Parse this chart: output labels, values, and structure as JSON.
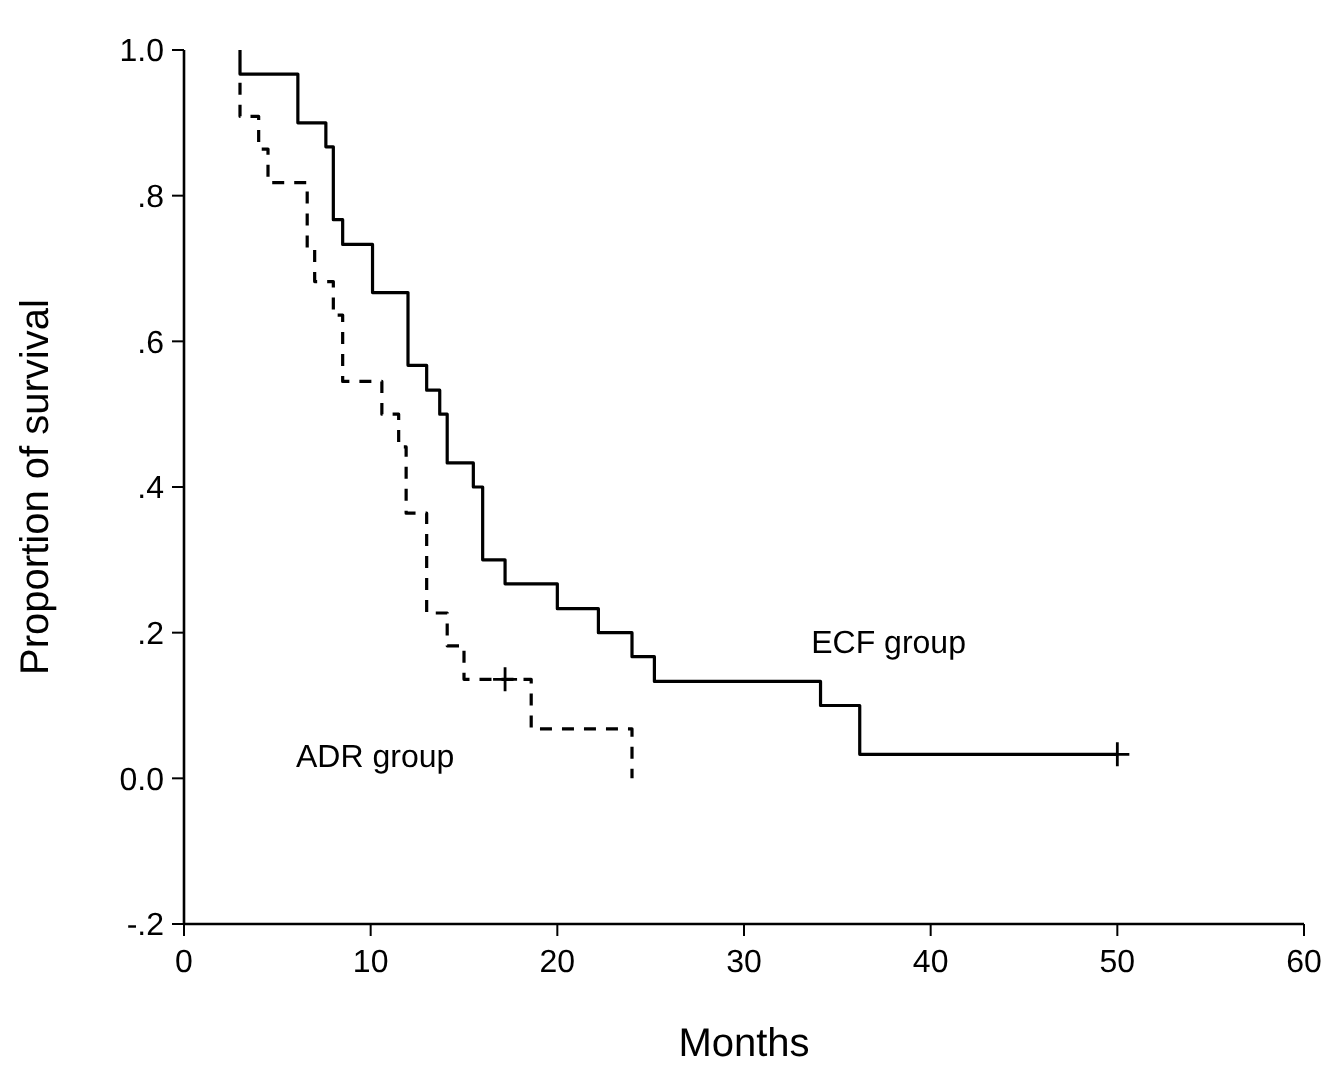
{
  "chart_data": {
    "type": "step",
    "xlabel": "Months",
    "ylabel": "Proportion of survival",
    "xlim": [
      0,
      60
    ],
    "xticks": [
      0,
      10,
      20,
      30,
      40,
      50,
      60
    ],
    "ylim": [
      -0.2,
      1.0
    ],
    "yticks": [
      {
        "value": -0.2,
        "label": "-.2"
      },
      {
        "value": 0,
        "label": "0.0"
      },
      {
        "value": 0.2,
        "label": ".2"
      },
      {
        "value": 0.4,
        "label": ".4"
      },
      {
        "value": 0.6,
        "label": ".6"
      },
      {
        "value": 0.8,
        "label": ".8"
      },
      {
        "value": 1.0,
        "label": "1.0"
      }
    ],
    "grid": false,
    "marker": "none",
    "series": [
      {
        "name": "ECF group",
        "color": "#000000",
        "line_style": "solid",
        "x": [
          3,
          3,
          6.1,
          7.6,
          8.0,
          8.5,
          10.1,
          12.0,
          13.0,
          13.7,
          14.1,
          15.5,
          16.0,
          17.2,
          20.0,
          22.2,
          24.0,
          25.2,
          34.1,
          36.2,
          50
        ],
        "values": [
          1.0,
          0.967,
          0.9,
          0.867,
          0.767,
          0.733,
          0.667,
          0.567,
          0.533,
          0.5,
          0.433,
          0.4,
          0.3,
          0.267,
          0.233,
          0.2,
          0.167,
          0.133,
          0.1,
          0.033,
          0.033
        ]
      },
      {
        "name": "ADR group",
        "color": "#000000",
        "line_style": "dashed",
        "x": [
          3,
          3,
          4.0,
          4.5,
          6.6,
          7.0,
          8.0,
          8.5,
          10.6,
          11.5,
          11.9,
          13.0,
          14.1,
          15.0,
          18.6,
          24.0
        ],
        "values": [
          0.955,
          0.909,
          0.864,
          0.818,
          0.727,
          0.682,
          0.636,
          0.545,
          0.5,
          0.455,
          0.364,
          0.227,
          0.182,
          0.136,
          0.068,
          0
        ]
      },
      {
        "type": "scatter",
        "color": "#000000",
        "marker": "cross",
        "x": [
          50,
          17.2
        ],
        "values": [
          0.033,
          0.136
        ]
      }
    ]
  }
}
